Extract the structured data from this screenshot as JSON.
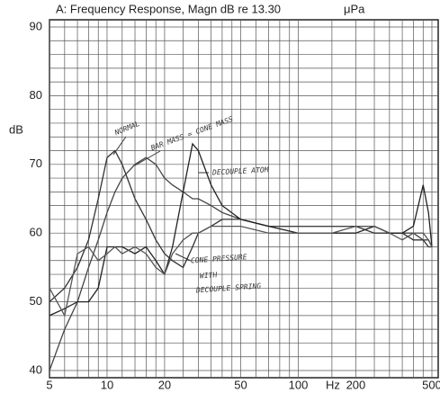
{
  "chart_data": {
    "type": "line",
    "title": "A: Frequency Response, Magn dB re 13.30",
    "subtitle": "μPa",
    "y_label": "dB",
    "x_label": "Hz",
    "log_x": true,
    "grid": true,
    "xlim": [
      5,
      500
    ],
    "ylim": [
      40,
      90
    ],
    "xticks": [
      5,
      10,
      20,
      50,
      100,
      200,
      500
    ],
    "yticks": [
      90,
      80,
      70,
      60,
      50,
      40
    ],
    "x_grid": [
      5,
      6,
      7,
      8,
      9,
      10,
      12,
      14,
      16,
      18,
      20,
      25,
      30,
      35,
      40,
      45,
      50,
      60,
      70,
      80,
      90,
      100,
      150,
      200,
      250,
      300,
      350,
      400,
      450,
      500
    ],
    "y_grid": [
      40,
      42,
      44,
      46,
      48,
      50,
      52,
      54,
      56,
      58,
      60,
      62,
      64,
      66,
      68,
      70,
      72,
      74,
      76,
      78,
      80,
      82,
      84,
      86,
      88,
      90
    ],
    "x": [
      5,
      6,
      7,
      8,
      9,
      10,
      11,
      12,
      14,
      16,
      18,
      20,
      22,
      25,
      28,
      30,
      35,
      40,
      50,
      70,
      100,
      150,
      200,
      250,
      300,
      350,
      400,
      450,
      480,
      500
    ],
    "series": [
      {
        "color": "#333333",
        "values": [
          50,
          52,
          55,
          59,
          65,
          71,
          72,
          70,
          65,
          62,
          59,
          57,
          56,
          55,
          58,
          60,
          61,
          62,
          62,
          61,
          61,
          61,
          61,
          60,
          60,
          60,
          59,
          59,
          58,
          58
        ]
      },
      {
        "color": "#444444",
        "values": [
          40,
          46,
          50,
          55,
          59,
          63,
          66,
          68,
          70,
          71,
          70,
          68,
          67,
          66,
          65,
          65,
          64,
          63,
          62,
          61,
          61,
          61,
          61,
          61,
          60,
          60,
          60,
          59,
          59,
          58
        ]
      },
      {
        "color": "#222222",
        "values": [
          48,
          49,
          50,
          50,
          52,
          58,
          58,
          58,
          57,
          58,
          56,
          54,
          58,
          66,
          73,
          72,
          67,
          64,
          62,
          61,
          60,
          60,
          60,
          61,
          60,
          60,
          61,
          67,
          63,
          58
        ]
      },
      {
        "color": "#555555",
        "values": [
          52,
          48,
          57,
          58,
          56,
          57,
          58,
          57,
          58,
          57,
          55,
          54,
          57,
          59,
          60,
          60,
          61,
          61,
          61,
          60,
          60,
          60,
          61,
          61,
          60,
          59,
          60,
          60,
          59,
          58
        ]
      }
    ],
    "annotations": [
      "NORMAL",
      "BAR MASS = CONE MASS",
      "DECOUPLE ATOM",
      "CONE PRESSURE",
      "WITH",
      "DECOUPLE SPRING"
    ]
  }
}
